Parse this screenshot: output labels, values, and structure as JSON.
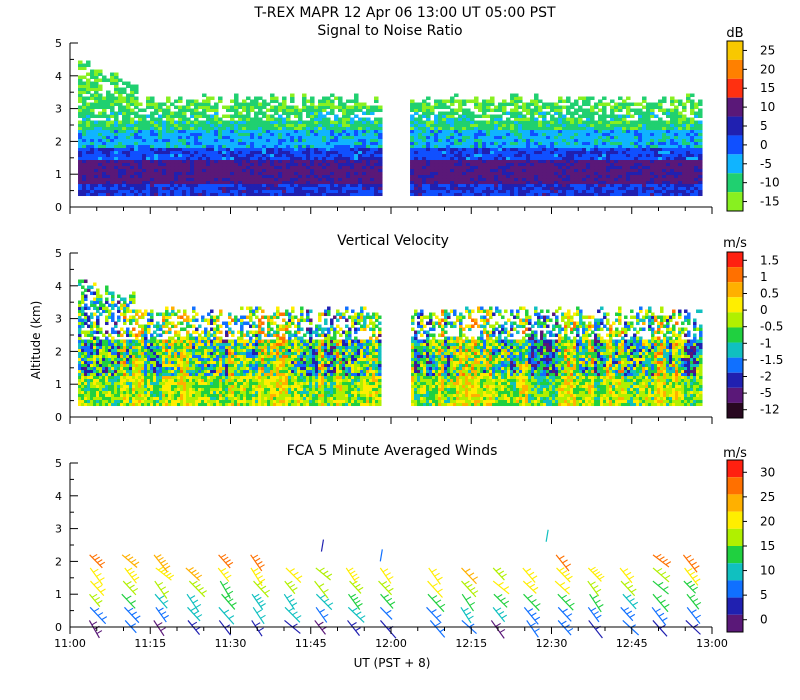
{
  "title": "T-REX  MAPR 12 Apr 06  13:00 UT  05:00  PST",
  "xlabel": "UT  (PST + 8)",
  "ylabel": "Altitude (km)",
  "time_ticks": [
    "11:00",
    "11:15",
    "11:30",
    "11:45",
    "12:00",
    "12:15",
    "12:30",
    "12:45",
    "13:00"
  ],
  "alt_ticks": [
    "0",
    "1",
    "2",
    "3",
    "4",
    "5"
  ],
  "chart_data": [
    {
      "type": "heatmap",
      "title": "Signal to Noise Ratio",
      "units": "dB",
      "x_range_minutes_after_1100": [
        0,
        120
      ],
      "ylim": [
        0,
        5
      ],
      "data_gap_minutes": [
        58,
        64
      ],
      "colorbar_ticks": [
        "25",
        "20",
        "15",
        "10",
        "5",
        "0",
        "-5",
        "-10",
        "-15"
      ],
      "colorbar_values": [
        25,
        20,
        15,
        10,
        5,
        0,
        -5,
        -10,
        -15
      ],
      "colors": [
        "#f8c800",
        "#ff8000",
        "#ff3010",
        "#5a1878",
        "#2020b0",
        "#1050ff",
        "#10b4ff",
        "#20d070",
        "#88f020"
      ],
      "profile": [
        {
          "alt_km": 0.4,
          "level": 0
        },
        {
          "alt_km": 0.8,
          "level": 5
        },
        {
          "alt_km": 1.2,
          "level": 10
        },
        {
          "alt_km": 1.6,
          "level": 0
        },
        {
          "alt_km": 2.0,
          "level": -5
        },
        {
          "alt_km": 2.6,
          "level": -10
        },
        {
          "alt_km": 3.2,
          "level": -15
        }
      ]
    },
    {
      "type": "heatmap",
      "title": "Vertical Velocity",
      "units": "m/s",
      "x_range_minutes_after_1100": [
        0,
        120
      ],
      "ylim": [
        0,
        5
      ],
      "data_gap_minutes": [
        58,
        64
      ],
      "colorbar_ticks": [
        "1.5",
        "1",
        "0.5",
        "0",
        "-0.5",
        "-1",
        "-1.5",
        "-2",
        "-5",
        "-12"
      ],
      "colorbar_values": [
        1.5,
        1,
        0.5,
        0,
        -0.5,
        -1,
        -1.5,
        -2,
        -5,
        -12
      ],
      "colors": [
        "#ff2010",
        "#ff7000",
        "#ffb000",
        "#ffee00",
        "#b0f000",
        "#20d040",
        "#10c0c0",
        "#1070ff",
        "#2020b0",
        "#5a1878",
        "#280820"
      ]
    },
    {
      "type": "barbs",
      "title": "FCA 5 Minute Averaged Winds",
      "units": "m/s",
      "x_range_minutes_after_1100": [
        0,
        120
      ],
      "ylim": [
        0,
        5
      ],
      "colorbar_ticks": [
        "30",
        "25",
        "20",
        "15",
        "10",
        "5",
        "0"
      ],
      "colorbar_values": [
        30,
        25,
        20,
        15,
        10,
        5,
        0
      ],
      "colors": [
        "#ff2010",
        "#ff7000",
        "#ffb000",
        "#ffee00",
        "#b0f000",
        "#20d040",
        "#10c0c0",
        "#1070ff",
        "#2020b0",
        "#5a1878"
      ],
      "barb_times_minutes": [
        4,
        10,
        16,
        22,
        28,
        34,
        40,
        46,
        52,
        58,
        67,
        73,
        79,
        85,
        91,
        97,
        103,
        109,
        115
      ],
      "barb_altitudes_km": [
        0.2,
        0.6,
        1.0,
        1.4,
        1.8,
        2.2
      ]
    }
  ]
}
